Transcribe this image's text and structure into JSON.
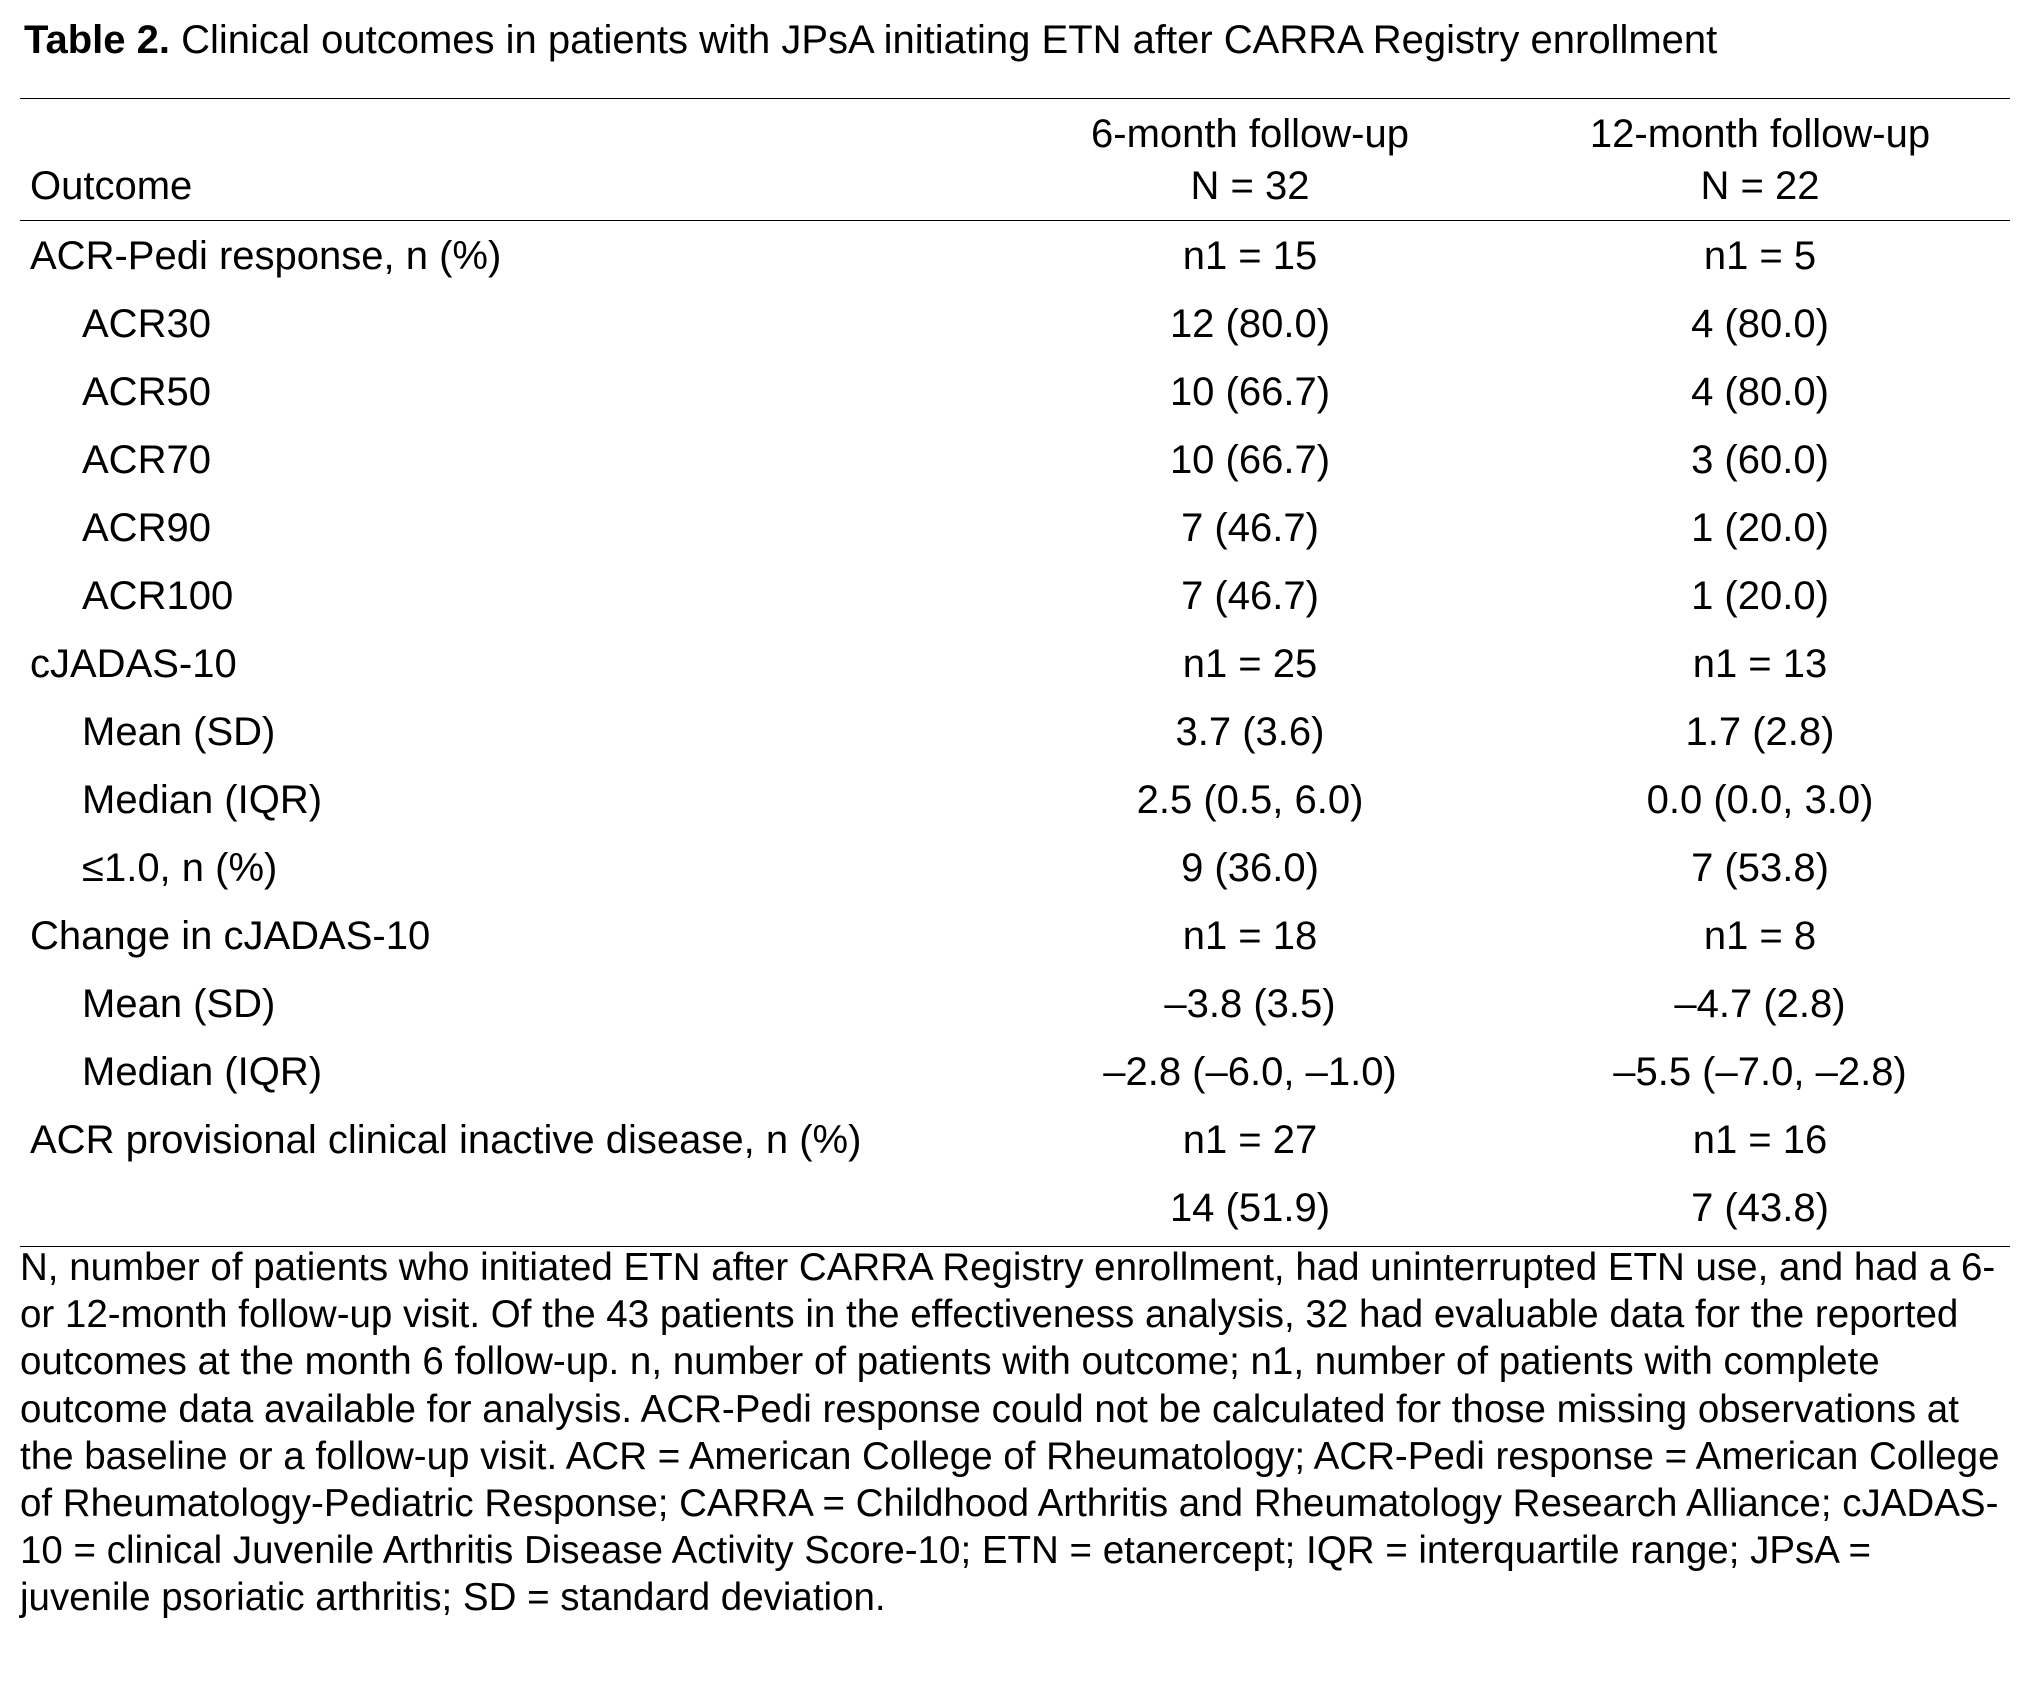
{
  "caption": {
    "label": "Table 2.",
    "text": " Clinical outcomes in patients with JPsA initiating ETN after CARRA Registry enrollment"
  },
  "header": {
    "outcome": "Outcome",
    "col6_line1": "6-month follow-up",
    "col6_line2": "N = 32",
    "col12_line1": "12-month follow-up",
    "col12_line2": "N = 22"
  },
  "rows": [
    {
      "label": "ACR-Pedi response, n (%)",
      "v6": "n1 = 15",
      "v12": "n1 = 5",
      "indent": false
    },
    {
      "label": "ACR30",
      "v6": "12 (80.0)",
      "v12": "4 (80.0)",
      "indent": true
    },
    {
      "label": "ACR50",
      "v6": "10 (66.7)",
      "v12": "4 (80.0)",
      "indent": true
    },
    {
      "label": "ACR70",
      "v6": "10 (66.7)",
      "v12": "3 (60.0)",
      "indent": true
    },
    {
      "label": "ACR90",
      "v6": "7 (46.7)",
      "v12": "1 (20.0)",
      "indent": true
    },
    {
      "label": "ACR100",
      "v6": "7 (46.7)",
      "v12": "1 (20.0)",
      "indent": true
    },
    {
      "label": "cJADAS-10",
      "v6": "n1 = 25",
      "v12": "n1 = 13",
      "indent": false
    },
    {
      "label": "Mean (SD)",
      "v6": "3.7 (3.6)",
      "v12": "1.7 (2.8)",
      "indent": true
    },
    {
      "label": "Median (IQR)",
      "v6": "2.5 (0.5, 6.0)",
      "v12": "0.0 (0.0, 3.0)",
      "indent": true
    },
    {
      "label": "≤1.0, n (%)",
      "v6": "9 (36.0)",
      "v12": "7 (53.8)",
      "indent": true
    },
    {
      "label": "Change in cJADAS-10",
      "v6": "n1 = 18",
      "v12": "n1 = 8",
      "indent": false
    },
    {
      "label": "Mean (SD)",
      "v6": "–3.8 (3.5)",
      "v12": "–4.7 (2.8)",
      "indent": true
    },
    {
      "label": "Median (IQR)",
      "v6": "–2.8 (–6.0, –1.0)",
      "v12": "–5.5 (–7.0, –2.8)",
      "indent": true
    },
    {
      "label": "ACR provisional clinical inactive disease, n (%)",
      "v6": "n1 = 27",
      "v12": "n1 = 16",
      "indent": false
    },
    {
      "label": "",
      "v6": "14 (51.9)",
      "v12": "7 (43.8)",
      "indent": false
    }
  ],
  "footnote": "N, number of patients who initiated ETN after CARRA Registry enrollment, had uninterrupted ETN use, and had a 6- or 12-month follow-up visit. Of the 43 patients in the effectiveness analysis, 32 had evaluable data for the reported outcomes at the month 6 follow-up. n, number of patients with outcome; n1, number of patients with complete outcome data available for analysis. ACR-Pedi response could not be calculated for those missing observations at the baseline or a follow-up visit. ACR = American College of Rheumatology; ACR-Pedi response = American College of Rheumatology-Pediatric Response; CARRA = Childhood Arthritis and Rheumatology Research Alliance; cJADAS-10 = clinical Juvenile Arthritis Disease Activity Score-10; ETN = etanercept; IQR = interquartile range; JPsA = juvenile psoriatic arthritis; SD = standard deviation."
}
